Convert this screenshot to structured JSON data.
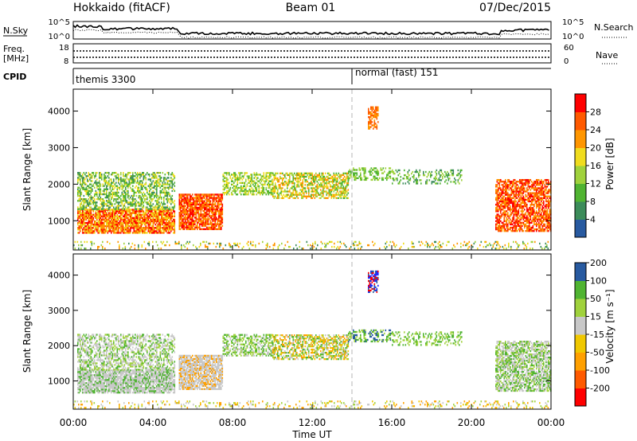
{
  "header": {
    "station": "Hokkaido (fitACF)",
    "beam": "Beam 01",
    "date": "07/Dec/2015"
  },
  "noise_panel": {
    "left_label": "N.Sky",
    "right_label": "N.Search",
    "left_ticks": [
      "10^5",
      "10^0"
    ],
    "right_ticks": [
      "10^5",
      "10^0"
    ]
  },
  "freq_panel": {
    "left_label_1": "Freq.",
    "left_label_2": "[MHz]",
    "right_label": "Nave",
    "left_ticks": [
      "18",
      "8"
    ],
    "right_ticks": [
      "60",
      "0"
    ]
  },
  "cpid_panel": {
    "label": "CPID",
    "modes": [
      {
        "name": "themis 3300",
        "start_hour": 0.0
      },
      {
        "name": "normal (fast) 151",
        "start_hour": 14.0
      }
    ]
  },
  "colors": {
    "grey": "#c8c8c8",
    "power_scale": [
      "#1e28ff",
      "#285aa0",
      "#3c8c5a",
      "#50b432",
      "#a0d23c",
      "#f0dc1e",
      "#ff9600",
      "#ff5a00",
      "#ff0000"
    ],
    "velocity_scale": [
      "#ff0000",
      "#ff5a00",
      "#ffa000",
      "#f0c800",
      "#c8c8c8",
      "#a0d23c",
      "#50b432",
      "#285aa0",
      "#1e28ff"
    ]
  },
  "chart_data": [
    {
      "type": "heatmap",
      "name": "power",
      "ylabel": "Slant Range [km]",
      "ylim": [
        200,
        4600
      ],
      "yticks": [
        "1000",
        "2000",
        "3000",
        "4000"
      ],
      "xlim": [
        0,
        24
      ],
      "colorbar_label": "Power [dB]",
      "colorbar_ticks": [
        "4",
        "8",
        "12",
        "16",
        "20",
        "24",
        "28"
      ],
      "clim": [
        0,
        30
      ]
    },
    {
      "type": "heatmap",
      "name": "velocity",
      "ylabel": "Slant Range [km]",
      "ylim": [
        200,
        4600
      ],
      "yticks": [
        "1000",
        "2000",
        "3000",
        "4000"
      ],
      "xlim": [
        0,
        24
      ],
      "colorbar_label": "Velocity [m s⁻¹]",
      "colorbar_ticks": [
        "-200",
        "-100",
        "-50",
        "-15",
        "15",
        "50",
        "100",
        "200"
      ]
    }
  ],
  "xaxis": {
    "ticks": [
      "00:00",
      "04:00",
      "08:00",
      "12:00",
      "16:00",
      "20:00",
      "00:00"
    ],
    "label": "Time UT"
  }
}
